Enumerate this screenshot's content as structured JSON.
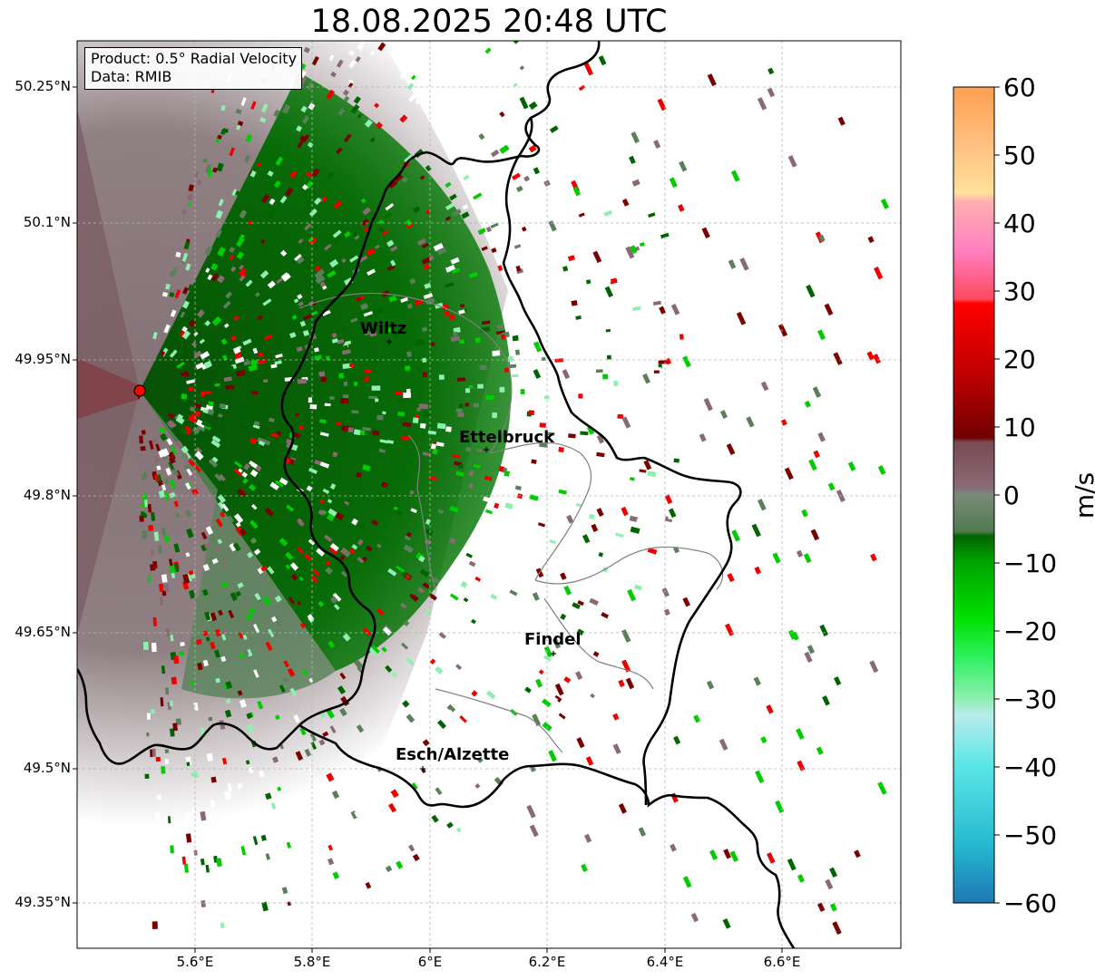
{
  "title": "18.08.2025 20:48 UTC",
  "info": {
    "product": "Product: 0.5° Radial Velocity",
    "source": "Data: RMIB"
  },
  "lat_ticks": [
    "50.25°N",
    "50.1°N",
    "49.95°N",
    "49.8°N",
    "49.65°N",
    "49.5°N",
    "49.35°N"
  ],
  "lon_ticks": [
    "5.6°E",
    "5.8°E",
    "6°E",
    "6.2°E",
    "6.4°E",
    "6.6°E"
  ],
  "cities": [
    {
      "name": "Wiltz"
    },
    {
      "name": "Ettelbruck"
    },
    {
      "name": "Findel"
    },
    {
      "name": "Esch/Alzette"
    }
  ],
  "colorbar": {
    "unit": "m/s",
    "ticks": [
      "60",
      "50",
      "40",
      "30",
      "20",
      "10",
      "0",
      "−10",
      "−20",
      "−30",
      "−40",
      "−50",
      "−60"
    ],
    "range": [
      -60,
      60
    ],
    "colors": {
      "strong_inbound": "#1f77b4",
      "cyan": "#2ee0e0",
      "light_green": "#8ef0b0",
      "green": "#00cc00",
      "dark_green": "#006400",
      "gray_green": "#5a7f5a",
      "gray_red": "#8a6a72",
      "dark_red": "#7a0000",
      "red": "#ee0000",
      "pink": "#ff80c0",
      "orange": "#ffa050"
    }
  }
}
